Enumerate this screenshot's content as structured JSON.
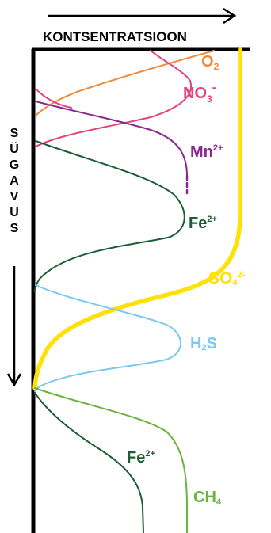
{
  "axes": {
    "x_label": "KONTSENTRATSIOON",
    "y_letters": [
      "S",
      "Ü",
      "G",
      "A",
      "V",
      "U",
      "S"
    ]
  },
  "curves": [
    {
      "id": "o2",
      "base": "O",
      "sub": "2",
      "sup": "",
      "color": "#f08a3c"
    },
    {
      "id": "no3",
      "base": "NO",
      "sub": "3",
      "sup": "-",
      "color": "#e8417a"
    },
    {
      "id": "mn",
      "base": "Mn",
      "sub": "",
      "sup": "2+",
      "color": "#8a2a90"
    },
    {
      "id": "fe_upper",
      "base": "Fe",
      "sub": "",
      "sup": "2+",
      "color": "#1b5e35"
    },
    {
      "id": "so4",
      "base": "SO",
      "sub": "4",
      "sup": "2-",
      "color": "#ffe10a"
    },
    {
      "id": "h2s",
      "base": "H",
      "sub": "2",
      "sup": "S",
      "color": "#7cc8ee"
    },
    {
      "id": "fe_lower",
      "base": "Fe",
      "sub": "",
      "sup": "2+",
      "color": "#1b5e35"
    },
    {
      "id": "ch4",
      "base": "CH",
      "sub": "4",
      "sup": "",
      "color": "#6ab33e"
    }
  ]
}
